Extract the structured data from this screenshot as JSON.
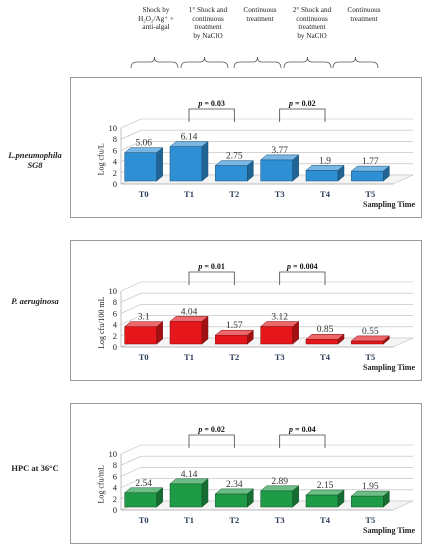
{
  "treatments": [
    {
      "id": "shock1",
      "lines": [
        "Shock by",
        "H₂O₂/Ag⁺ +",
        "anti-algal"
      ]
    },
    {
      "id": "shock-naclo-1",
      "lines": [
        "1° Shock and",
        "continuous",
        "treatment",
        "by NaClO"
      ]
    },
    {
      "id": "continuous-1",
      "lines": [
        "Continuous",
        "treatment"
      ]
    },
    {
      "id": "shock-naclo-2",
      "lines": [
        "2° Shock and",
        "continuous",
        "treatment",
        "by NaClO"
      ]
    },
    {
      "id": "continuous-2",
      "lines": [
        "Continuous",
        "treatment"
      ]
    }
  ],
  "colors": {
    "legionella": "#2f8fd4",
    "pseudomonas": "#e5171b",
    "hpc": "#1f9a47"
  },
  "chart_data": [
    {
      "type": "bar",
      "row_label": [
        "L.pneumophila",
        "SG8"
      ],
      "italic": true,
      "ylabel": "Log cfu/L",
      "xlabel": "Sampling Time",
      "categories": [
        "T0",
        "T1",
        "T2",
        "T3",
        "T4",
        "T5"
      ],
      "values": [
        5.06,
        6.14,
        2.75,
        3.77,
        1.9,
        1.77
      ],
      "value_labels": [
        "5.06",
        "6.14",
        "2.75",
        "3.77",
        "1.9",
        "1.77"
      ],
      "ylim": [
        0,
        10
      ],
      "yticks": [
        0,
        2,
        4,
        6,
        8,
        10
      ],
      "color": "#2f8fd4",
      "pvalues": [
        {
          "from": 1,
          "to": 2,
          "label": "p = 0.03"
        },
        {
          "from": 3,
          "to": 4,
          "label": "p = 0.02"
        }
      ]
    },
    {
      "type": "bar",
      "row_label": [
        "P. aeruginosa"
      ],
      "italic": true,
      "ylabel": "Log cfu/100 mL",
      "xlabel": "Sampling Time",
      "categories": [
        "T0",
        "T1",
        "T2",
        "T3",
        "T4",
        "T5"
      ],
      "values": [
        3.1,
        4.04,
        1.57,
        3.12,
        0.85,
        0.55
      ],
      "value_labels": [
        "3.1",
        "4.04",
        "1.57",
        "3.12",
        "0.85",
        "0.55"
      ],
      "ylim": [
        0,
        10
      ],
      "yticks": [
        0,
        2,
        4,
        6,
        8,
        10
      ],
      "color": "#e5171b",
      "pvalues": [
        {
          "from": 1,
          "to": 2,
          "label": "p = 0.01"
        },
        {
          "from": 3,
          "to": 4,
          "label": "p = 0.004"
        }
      ]
    },
    {
      "type": "bar",
      "row_label": [
        "HPC at 36°C"
      ],
      "italic": false,
      "ylabel": "Log cfu/mL",
      "xlabel": "Sampling Time",
      "categories": [
        "T0",
        "T1",
        "T2",
        "T3",
        "T4",
        "T5"
      ],
      "values": [
        2.54,
        4.14,
        2.34,
        2.89,
        2.15,
        1.95
      ],
      "value_labels": [
        "2.54",
        "4.14",
        "2.34",
        "2.89",
        "2.15",
        "1.95"
      ],
      "ylim": [
        0,
        10
      ],
      "yticks": [
        0,
        2,
        4,
        6,
        8,
        10
      ],
      "color": "#1f9a47",
      "pvalues": [
        {
          "from": 1,
          "to": 2,
          "label": "p = 0.02"
        },
        {
          "from": 3,
          "to": 4,
          "label": "p = 0.04"
        }
      ]
    }
  ]
}
